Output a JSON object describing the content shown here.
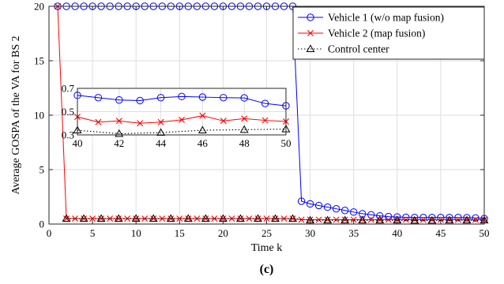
{
  "chart_data": {
    "type": "line",
    "xlabel": "Time k",
    "ylabel": "Average GOSPA of the VA for BS 2",
    "caption": "(c)",
    "xlim": [
      0,
      50
    ],
    "ylim": [
      0,
      20
    ],
    "x_ticks": [
      0,
      5,
      10,
      15,
      20,
      25,
      30,
      35,
      40,
      45,
      50
    ],
    "y_ticks": [
      0,
      5,
      10,
      15,
      20
    ],
    "grid": true,
    "legend_position": "top-right",
    "series": [
      {
        "name": "Vehicle 1 (w/o map fusion)",
        "color": "#0000ff",
        "marker": "circle",
        "line_style": "solid",
        "x": [
          1,
          2,
          3,
          4,
          5,
          6,
          7,
          8,
          9,
          10,
          11,
          12,
          13,
          14,
          15,
          16,
          17,
          18,
          19,
          20,
          21,
          22,
          23,
          24,
          25,
          26,
          27,
          28,
          29,
          30,
          31,
          32,
          33,
          34,
          35,
          36,
          37,
          38,
          39,
          40,
          41,
          42,
          43,
          44,
          45,
          46,
          47,
          48,
          49,
          50
        ],
        "y": [
          20,
          20,
          20,
          20,
          20,
          20,
          20,
          20,
          20,
          20,
          20,
          20,
          20,
          20,
          20,
          20,
          20,
          20,
          20,
          20,
          20,
          20,
          20,
          20,
          20,
          20,
          20,
          20,
          2.1,
          1.85,
          1.7,
          1.55,
          1.4,
          1.25,
          1.1,
          0.95,
          0.85,
          0.75,
          0.68,
          0.65,
          0.62,
          0.6,
          0.6,
          0.6,
          0.6,
          0.6,
          0.6,
          0.58,
          0.56,
          0.5
        ]
      },
      {
        "name": "Vehicle 2 (map fusion)",
        "color": "#ff0000",
        "marker": "x",
        "line_style": "solid",
        "x": [
          1,
          2,
          3,
          4,
          5,
          6,
          7,
          8,
          9,
          10,
          11,
          12,
          13,
          14,
          15,
          16,
          17,
          18,
          19,
          20,
          21,
          22,
          23,
          24,
          25,
          26,
          27,
          28,
          29,
          30,
          31,
          32,
          33,
          34,
          35,
          36,
          37,
          38,
          39,
          40,
          41,
          42,
          43,
          44,
          45,
          46,
          47,
          48,
          49,
          50
        ],
        "y": [
          20,
          0.5,
          0.5,
          0.5,
          0.5,
          0.5,
          0.5,
          0.5,
          0.5,
          0.5,
          0.5,
          0.5,
          0.5,
          0.5,
          0.5,
          0.5,
          0.5,
          0.5,
          0.5,
          0.5,
          0.5,
          0.5,
          0.5,
          0.5,
          0.5,
          0.5,
          0.5,
          0.5,
          0.4,
          0.4,
          0.4,
          0.4,
          0.4,
          0.4,
          0.4,
          0.4,
          0.4,
          0.4,
          0.4,
          0.4,
          0.4,
          0.4,
          0.4,
          0.4,
          0.4,
          0.4,
          0.4,
          0.4,
          0.4,
          0.4
        ]
      },
      {
        "name": "Control center",
        "color": "#000000",
        "marker": "triangle",
        "line_style": "dotted",
        "x": [
          2,
          4,
          6,
          8,
          10,
          12,
          14,
          16,
          18,
          20,
          22,
          24,
          26,
          28,
          30,
          32,
          34,
          36,
          38,
          40,
          42,
          44,
          46,
          48,
          50
        ],
        "y": [
          0.5,
          0.5,
          0.5,
          0.5,
          0.5,
          0.5,
          0.5,
          0.5,
          0.5,
          0.5,
          0.5,
          0.5,
          0.5,
          0.5,
          0.35,
          0.35,
          0.35,
          0.35,
          0.35,
          0.35,
          0.33,
          0.33,
          0.35,
          0.35,
          0.35
        ]
      }
    ],
    "inset": {
      "xlim": [
        40,
        50
      ],
      "ylim": [
        0.3,
        0.7
      ],
      "x_ticks": [
        40,
        42,
        44,
        46,
        48,
        50
      ],
      "y_tick_labels": [
        {
          "value": 0.3,
          "label": "0.3"
        },
        {
          "value": 0.5,
          "label": "0.5"
        },
        {
          "value": 0.7,
          "label": "0.7"
        }
      ],
      "grid": true,
      "series": [
        {
          "name": "Vehicle 1 (w/o map fusion)",
          "x": [
            40,
            41,
            42,
            43,
            44,
            45,
            46,
            47,
            48,
            49,
            50
          ],
          "y": [
            0.64,
            0.62,
            0.6,
            0.595,
            0.62,
            0.63,
            0.625,
            0.62,
            0.618,
            0.57,
            0.55
          ]
        },
        {
          "name": "Vehicle 2 (map fusion)",
          "x": [
            40,
            41,
            42,
            43,
            44,
            45,
            46,
            47,
            48,
            49,
            50
          ],
          "y": [
            0.455,
            0.41,
            0.42,
            0.4,
            0.41,
            0.43,
            0.465,
            0.42,
            0.44,
            0.425,
            0.415
          ]
        },
        {
          "name": "Control center",
          "x": [
            40,
            42,
            44,
            46,
            48,
            50
          ],
          "y": [
            0.34,
            0.31,
            0.32,
            0.34,
            0.345,
            0.35
          ]
        }
      ]
    }
  }
}
